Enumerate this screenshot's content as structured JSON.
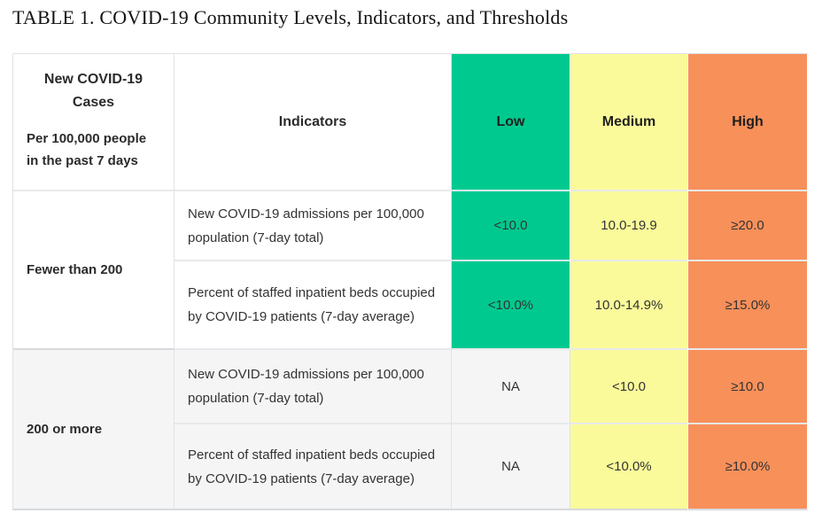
{
  "title": "TABLE 1. COVID-19 Community Levels, Indicators, and Thresholds",
  "colors": {
    "low": "#00C98F",
    "medium": "#FAFA9B",
    "high": "#F8905A",
    "row_alt": "#F5F5F6",
    "border": "#DFE2E6",
    "border_h": "#E7E9EC",
    "border_bottom": "#D7DADD",
    "text": "#333333"
  },
  "table": {
    "header": {
      "cases_title": "New COVID-19 Cases",
      "cases_subtitle": "Per 100,000 people in the past 7 days",
      "indicators_label": "Indicators",
      "levels": [
        {
          "label": "Low"
        },
        {
          "label": "Medium"
        },
        {
          "label": "High"
        }
      ]
    },
    "groups": [
      {
        "cases": "Fewer than 200",
        "rows": [
          {
            "indicator": "New COVID-19 admissions per 100,000 population (7-day total)",
            "low": "<10.0",
            "medium": "10.0-19.9",
            "high": "≥20.0"
          },
          {
            "indicator": "Percent of staffed inpatient beds occupied by COVID-19 patients (7-day average)",
            "low": "<10.0%",
            "medium": "10.0-14.9%",
            "high": "≥15.0%"
          }
        ]
      },
      {
        "cases": "200 or more",
        "rows": [
          {
            "indicator": "New COVID-19 admissions per 100,000 population (7-day total)",
            "low": "NA",
            "medium": "<10.0",
            "high": "≥10.0"
          },
          {
            "indicator": "Percent of staffed inpatient beds occupied by COVID-19 patients (7-day average)",
            "low": "NA",
            "medium": "<10.0%",
            "high": "≥10.0%"
          }
        ]
      }
    ]
  }
}
